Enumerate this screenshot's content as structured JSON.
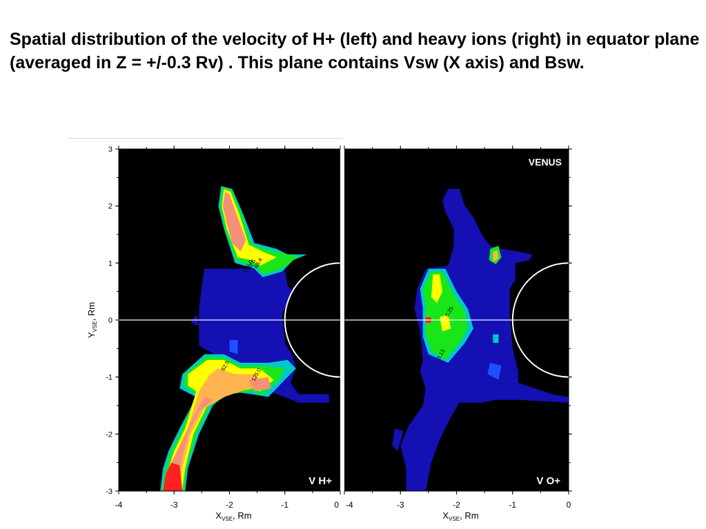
{
  "title": "Spatial distribution of the velocity of H+ (left) and heavy ions (right) in equator plane (averaged in Z = +/-0.3 Rv) . This plane contains Vsw (X axis) and Bsw.",
  "colors": {
    "background": "#000000",
    "low_velocity": "#1410b4",
    "mid_blue": "#1e50ff",
    "cyan": "#00c8c8",
    "green": "#19e619",
    "yellow": "#ffff00",
    "orange": "#ffb450",
    "salmon": "#f59078",
    "red": "#ff2020",
    "planet_outline": "#ffffff"
  },
  "chart_data": [
    {
      "type": "heatmap",
      "panel_label": "V H+",
      "xlabel_main": "X",
      "xlabel_sub": "VSE",
      "xlabel_unit": ", Rm",
      "ylabel_main": "Y",
      "ylabel_sub": "VSE",
      "ylabel_unit": ", Rm",
      "xlim": [
        -4,
        0
      ],
      "ylim": [
        -3,
        3
      ],
      "xticks": [
        "-4",
        "-3",
        "-2",
        "-1",
        "0"
      ],
      "yticks": [
        "-3",
        "-2",
        "-1",
        "0",
        "1",
        "2",
        "3"
      ],
      "contour_labels": [
        "125.0",
        "62.5",
        "68.4",
        "125.0",
        "125.0",
        "62.5"
      ],
      "planet_radius": 1.0
    },
    {
      "type": "heatmap",
      "panel_label": "V O+",
      "corner_label": "VENUS",
      "xlabel_main": "X",
      "xlabel_sub": "VSE",
      "xlabel_unit": ", Rm",
      "xlim": [
        -4,
        0
      ],
      "ylim": [
        -3,
        3
      ],
      "xticks": [
        "-4",
        "-3",
        "-2",
        "-1",
        "0"
      ],
      "contour_labels": [
        "6.25",
        "3.13"
      ],
      "planet_radius": 1.0
    }
  ]
}
